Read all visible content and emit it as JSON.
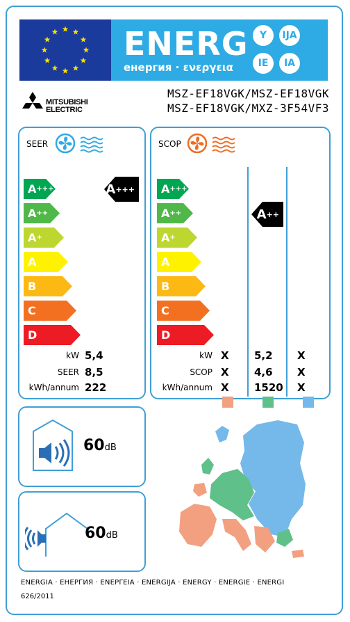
{
  "header": {
    "energy_word": "ENERG",
    "subtitle": "енергия · ενεργεια",
    "lang_badges": [
      "Y",
      "IJA",
      "IE",
      "IA"
    ]
  },
  "brand": {
    "name_line1": "MITSUBISHI",
    "name_line2": "ELECTRIC"
  },
  "models": {
    "line1": "MSZ-EF18VGK/MSZ-EF18VGK",
    "line2": "MSZ-EF18VGK/MXZ-3F54VF3"
  },
  "colors": {
    "frame": "#3f9fd6",
    "flag_blue": "#1a3b9c",
    "energy_band": "#2eabe4",
    "fan_cool": "#2eabe4",
    "fan_heat": "#f26b21",
    "zone_warm": "#f2a080",
    "zone_average": "#5fc08a",
    "zone_cold": "#74b9ea"
  },
  "scale": [
    {
      "cls": "A",
      "sup": "+++",
      "color": "#00a651"
    },
    {
      "cls": "A",
      "sup": "++",
      "color": "#50b848"
    },
    {
      "cls": "A",
      "sup": "+",
      "color": "#bed630"
    },
    {
      "cls": "A",
      "sup": "",
      "color": "#fff200"
    },
    {
      "cls": "B",
      "sup": "",
      "color": "#fdb913"
    },
    {
      "cls": "C",
      "sup": "",
      "color": "#f37021"
    },
    {
      "cls": "D",
      "sup": "",
      "color": "#ed1c24"
    }
  ],
  "seer": {
    "title": "SEER",
    "rating_cls": "A",
    "rating_sup": "+++",
    "rows": [
      {
        "label": "kW",
        "value": "5,4"
      },
      {
        "label": "SEER",
        "value": "8,5"
      },
      {
        "label": "kWh/annum",
        "value": "222"
      }
    ]
  },
  "scop": {
    "title": "SCOP",
    "rating_cls": "A",
    "rating_sup": "++",
    "labels": [
      "kW",
      "SCOP",
      "kWh/annum"
    ],
    "warm": [
      "X",
      "X",
      "X"
    ],
    "average": [
      "5,2",
      "4,6",
      "1520"
    ],
    "cold": [
      "X",
      "X",
      "X"
    ]
  },
  "noise": {
    "indoor_value": "60",
    "outdoor_value": "60",
    "unit": "dB"
  },
  "footer": {
    "languages": "ENERGIA · ЕНЕРГИЯ · ΕΝΕΡΓΕΙΑ · ENERGIJA · ENERGY · ENERGIE · ENERGI",
    "regulation": "626/2011"
  }
}
